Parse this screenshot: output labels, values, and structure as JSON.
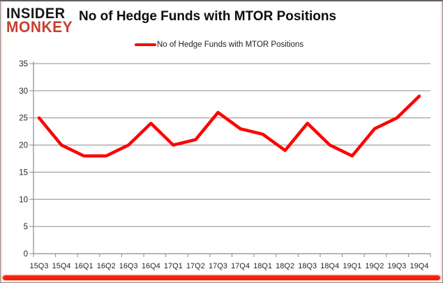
{
  "logo": {
    "line1": "INSIDER",
    "line2": "MONKEY",
    "line1_color": "#161616",
    "line2_color": "#c6402e"
  },
  "header": {
    "title": "No of Hedge Funds with MTOR Positions"
  },
  "legend": {
    "label": "No of Hedge Funds with MTOR Positions",
    "swatch_color": "#fe0000"
  },
  "colors": {
    "series_line": "#fe0000",
    "gridline": "#8c8c8c",
    "axis": "#8c8c8c",
    "axis_text": "#262626",
    "background": "#ffffff",
    "bottom_bar": "#ea1c04"
  },
  "chart_data": {
    "type": "line",
    "title": "No of Hedge Funds with MTOR Positions",
    "categories": [
      "15Q3",
      "15Q4",
      "16Q1",
      "16Q2",
      "16Q3",
      "16Q4",
      "17Q1",
      "17Q2",
      "17Q3",
      "17Q4",
      "18Q1",
      "18Q2",
      "18Q3",
      "18Q4",
      "19Q1",
      "19Q2",
      "19Q3",
      "19Q4"
    ],
    "series": [
      {
        "name": "No of Hedge Funds with MTOR Positions",
        "color": "#fe0000",
        "values": [
          25,
          20,
          18,
          18,
          20,
          24,
          20,
          21,
          26,
          23,
          22,
          19,
          24,
          20,
          18,
          23,
          25,
          29
        ]
      }
    ],
    "xlabel": "",
    "ylabel": "",
    "ylim": [
      0,
      35
    ],
    "yticks": [
      0,
      5,
      10,
      15,
      20,
      25,
      30,
      35
    ],
    "grid": "horizontal",
    "legend_position": "top-center"
  }
}
